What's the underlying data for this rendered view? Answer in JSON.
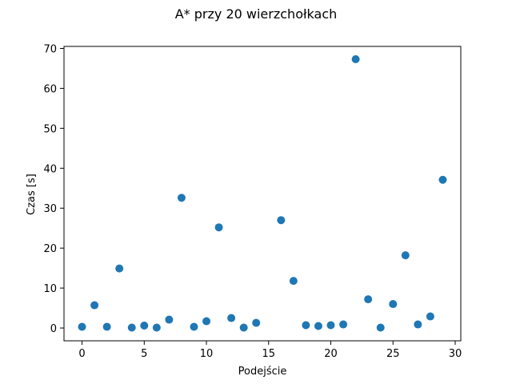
{
  "chart_data": {
    "type": "scatter",
    "title": "A* przy 20 wierzchołkach",
    "xlabel": "Podejście",
    "ylabel": "Czas [s]",
    "xlim": [
      -1.45,
      30.45
    ],
    "ylim": [
      -3.2,
      70.5
    ],
    "xticks": [
      0,
      5,
      10,
      15,
      20,
      25,
      30
    ],
    "yticks": [
      0,
      10,
      20,
      30,
      40,
      50,
      60,
      70
    ],
    "grid": false,
    "marker_color": "#1f77b4",
    "x": [
      0,
      1,
      2,
      3,
      4,
      5,
      6,
      7,
      8,
      9,
      10,
      11,
      12,
      13,
      14,
      15,
      16,
      17,
      18,
      19,
      20,
      21,
      22,
      23,
      24,
      25,
      26,
      27,
      28,
      29
    ],
    "y": [
      0.3,
      5.7,
      0.3,
      14.9,
      0.1,
      0.6,
      0.1,
      2.1,
      32.6,
      0.3,
      1.7,
      25.2,
      2.5,
      0.1,
      1.3,
      null,
      27.0,
      11.8,
      0.7,
      0.5,
      0.7,
      0.9,
      67.3,
      7.2,
      0.1,
      6.0,
      18.2,
      0.9,
      2.9,
      37.1
    ]
  }
}
